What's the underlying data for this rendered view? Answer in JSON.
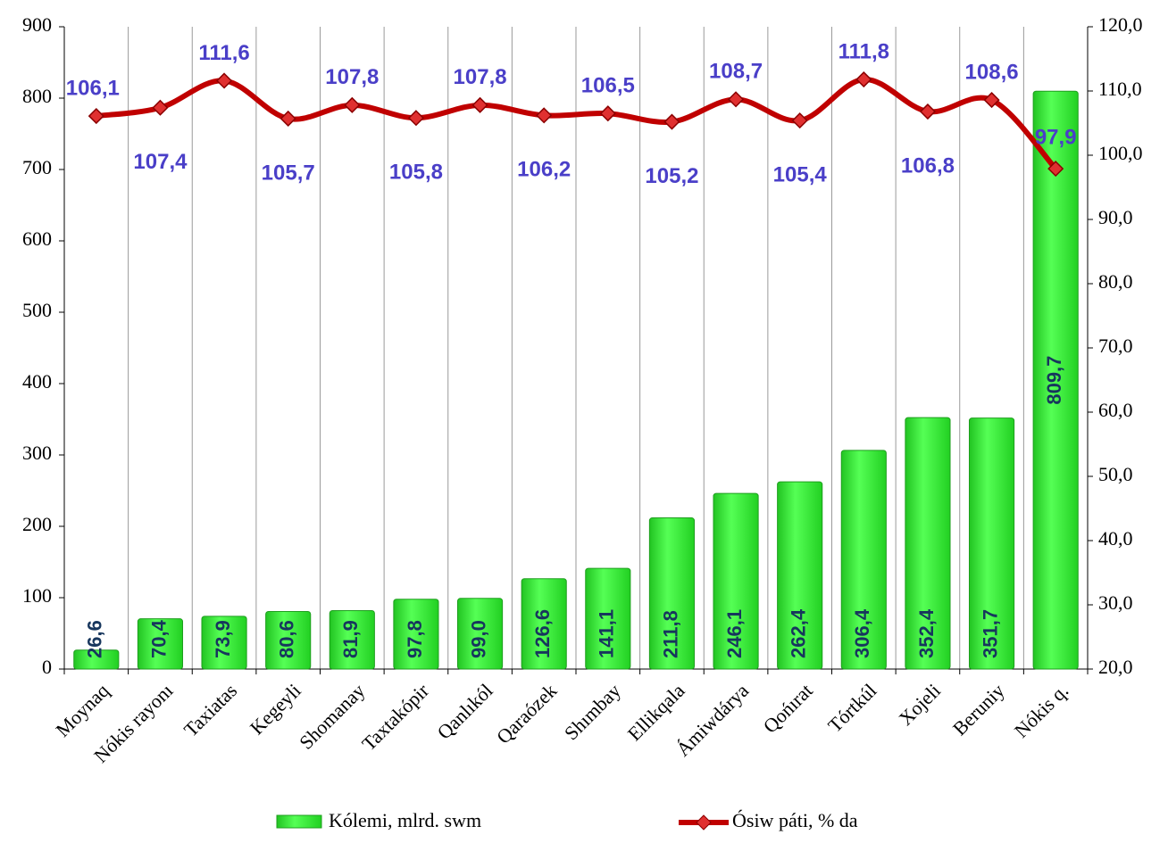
{
  "chart_data": {
    "type": "bar",
    "categories": [
      "Moynaq",
      "Nókis rayonı",
      "Taxiatas",
      "Kegeyli",
      "Shomanay",
      "Taxtakópir",
      "Qanlıkól",
      "Qaraózek",
      "Shımbay",
      "Ellikqala",
      "Ámiwdárya",
      "Qońırat",
      "Tórtkúl",
      "Xojeli",
      "Beruniy",
      "Nókis q."
    ],
    "series": [
      {
        "name": "Kólemi, mlrd. swm",
        "type": "bar",
        "color": "#33e833",
        "values": [
          26.6,
          70.4,
          73.9,
          80.6,
          81.9,
          97.8,
          99.0,
          126.6,
          141.1,
          211.8,
          246.1,
          262.4,
          306.4,
          352.4,
          351.7,
          809.7
        ],
        "value_labels": [
          "26,6",
          "70,4",
          "73,9",
          "80,6",
          "81,9",
          "97,8",
          "99,0",
          "126,6",
          "141,1",
          "211,8",
          "246,1",
          "262,4",
          "306,4",
          "352,4",
          "351,7",
          "809,7"
        ]
      },
      {
        "name": "Ósiw páti, % da",
        "type": "line",
        "axis": "y2",
        "color": "#c00000",
        "values": [
          106.1,
          107.4,
          111.6,
          105.7,
          107.8,
          105.8,
          107.8,
          106.2,
          106.5,
          105.2,
          108.7,
          105.4,
          111.8,
          106.8,
          108.6,
          97.9
        ],
        "value_labels": [
          "106,1",
          "107,4",
          "111,6",
          "105,7",
          "107,8",
          "105,8",
          "107,8",
          "106,2",
          "106,5",
          "105,2",
          "108,7",
          "105,4",
          "111,8",
          "106,8",
          "108,6",
          "97,9"
        ]
      }
    ],
    "ylim": [
      0,
      900
    ],
    "yticks": [
      0,
      100,
      200,
      300,
      400,
      500,
      600,
      700,
      800,
      900
    ],
    "y2lim": [
      20,
      120
    ],
    "y2ticks": [
      {
        "value": 20,
        "label": "20,0"
      },
      {
        "value": 30,
        "label": "30,0"
      },
      {
        "value": 40,
        "label": "40,0"
      },
      {
        "value": 50,
        "label": "50,0"
      },
      {
        "value": 60,
        "label": "60,0"
      },
      {
        "value": 70,
        "label": "70,0"
      },
      {
        "value": 80,
        "label": "80,0"
      },
      {
        "value": 90,
        "label": "90,0"
      },
      {
        "value": 100,
        "label": "100,0"
      },
      {
        "value": 110,
        "label": "110,0"
      },
      {
        "value": 120,
        "label": "120,0"
      }
    ],
    "grid": "vertical",
    "legend": "bottom"
  }
}
